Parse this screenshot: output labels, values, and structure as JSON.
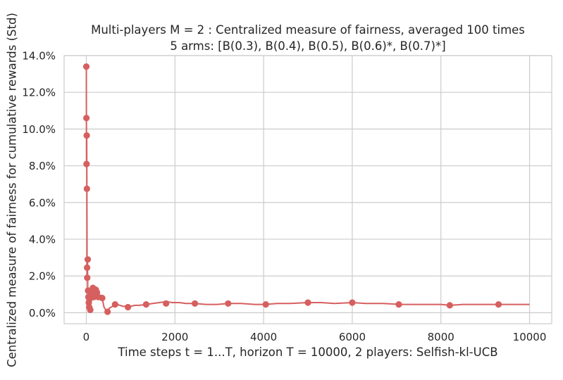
{
  "chart_data": {
    "type": "line",
    "title": "Multi-players M = 2 : Centralized measure of fairness, averaged 100 times",
    "subtitle": "5 arms: [B(0.3), B(0.4), B(0.5), B(0.6)*, B(0.7)*]",
    "xlabel": "Time steps t = 1...T, horizon T = 10000, 2 players: Selfish-kl-UCB",
    "ylabel": "Centralized measure of fairness for cumulative rewards (Std)",
    "xlim": [
      -500,
      10500
    ],
    "ylim": [
      -0.006,
      0.14
    ],
    "x_ticks": [
      0,
      2000,
      4000,
      6000,
      8000,
      10000
    ],
    "x_tick_labels": [
      "0",
      "2000",
      "4000",
      "6000",
      "8000",
      "10000"
    ],
    "y_ticks": [
      0.0,
      0.02,
      0.04,
      0.06,
      0.08,
      0.1,
      0.12,
      0.14
    ],
    "y_tick_labels": [
      "0.0%",
      "2.0%",
      "4.0%",
      "6.0%",
      "8.0%",
      "10.0%",
      "12.0%",
      "14.0%"
    ],
    "grid": true,
    "series": [
      {
        "color": "#d65f5f",
        "x": [
          1,
          3,
          6,
          10,
          14,
          18,
          22,
          27,
          33,
          40,
          48,
          57,
          67,
          78,
          90,
          100,
          110,
          120,
          135,
          150,
          170,
          190,
          215,
          240,
          270,
          300,
          330,
          360,
          400,
          440,
          480,
          520,
          560,
          600,
          650,
          700,
          760,
          820,
          880,
          940,
          1000,
          1100,
          1200,
          1350,
          1500,
          1650,
          1800,
          1950,
          2100,
          2250,
          2450,
          2700,
          2950,
          3200,
          3500,
          3800,
          4050,
          4300,
          4600,
          5000,
          5300,
          5600,
          6000,
          6300,
          6700,
          7100,
          7400,
          7700,
          8000,
          8200,
          8500,
          8900,
          9300,
          9700,
          10000
        ],
        "y": [
          0.134,
          0.106,
          0.081,
          0.0965,
          0.0675,
          0.0245,
          0.019,
          0.029,
          0.012,
          0.0085,
          0.0055,
          0.003,
          0.0075,
          0.0015,
          0.0095,
          0.008,
          0.0125,
          0.0105,
          0.0135,
          0.0085,
          0.0115,
          0.0075,
          0.0125,
          0.011,
          0.0085,
          0.0075,
          0.0095,
          0.008,
          0.003,
          0.0015,
          0.001,
          0.0025,
          0.003,
          0.0035,
          0.0045,
          0.0045,
          0.004,
          0.0035,
          0.0035,
          0.003,
          0.0035,
          0.004,
          0.004,
          0.0045,
          0.005,
          0.0055,
          0.006,
          0.0055,
          0.0055,
          0.005,
          0.005,
          0.0045,
          0.0045,
          0.005,
          0.005,
          0.0045,
          0.0045,
          0.005,
          0.005,
          0.0055,
          0.0055,
          0.005,
          0.0055,
          0.005,
          0.005,
          0.0045,
          0.0045,
          0.0045,
          0.0045,
          0.004,
          0.0045,
          0.0045,
          0.0045,
          0.0045,
          0.0045
        ],
        "markers_x": [
          1,
          3,
          6,
          10,
          14,
          18,
          22,
          33,
          40,
          48,
          57,
          67,
          78,
          90,
          110,
          135,
          150,
          170,
          190,
          215,
          240,
          270,
          360,
          480,
          650,
          940,
          1350,
          1800,
          2450,
          3200,
          4050,
          5000,
          6000,
          7050,
          8200,
          9300
        ],
        "markers_y": [
          0.134,
          0.106,
          0.081,
          0.0965,
          0.0675,
          0.0245,
          0.019,
          0.029,
          0.012,
          0.0085,
          0.0055,
          0.003,
          0.0075,
          0.0015,
          0.0095,
          0.0105,
          0.0135,
          0.0085,
          0.0115,
          0.0125,
          0.011,
          0.0085,
          0.008,
          0.0005,
          0.0045,
          0.003,
          0.0045,
          0.005,
          0.005,
          0.005,
          0.0045,
          0.0055,
          0.0055,
          0.0045,
          0.004,
          0.0045
        ]
      }
    ]
  }
}
